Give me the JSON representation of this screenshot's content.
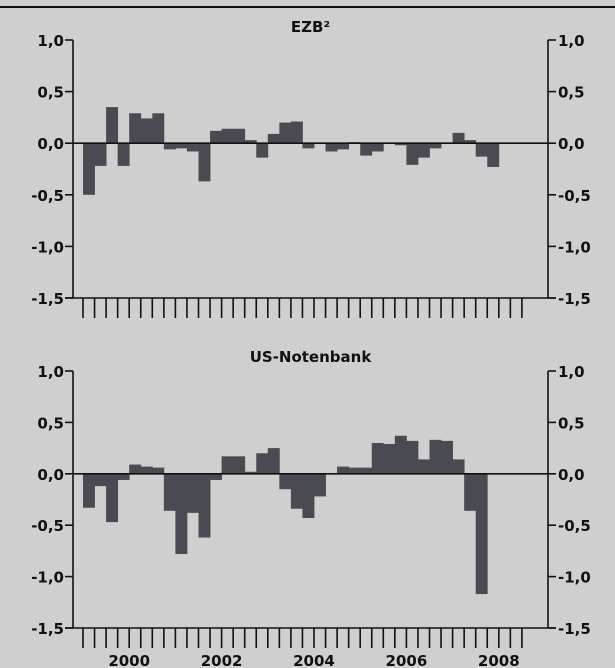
{
  "chart_data": [
    {
      "type": "bar",
      "title": "EZB²",
      "ylim": [
        -1.5,
        1.0
      ],
      "yticks": [
        -1.5,
        -1.0,
        -0.5,
        0.0,
        0.5,
        1.0
      ],
      "ytick_labels": [
        "-1,5",
        "-1,0",
        "-0,5",
        "0,0",
        "0,5",
        "1,0"
      ],
      "x_quarter_start": "1999-Q1",
      "xlim_quarters": [
        0,
        38
      ],
      "grid": false,
      "legend": "none",
      "values": [
        -0.5,
        -0.22,
        0.35,
        -0.22,
        0.29,
        0.24,
        0.29,
        -0.06,
        -0.05,
        -0.08,
        -0.37,
        0.12,
        0.14,
        0.14,
        0.03,
        -0.14,
        0.09,
        0.2,
        0.21,
        -0.05,
        0.0,
        -0.08,
        -0.06,
        0.01,
        -0.12,
        -0.08,
        0.0,
        -0.02,
        -0.21,
        -0.14,
        -0.05,
        0.0,
        0.1,
        0.03,
        -0.13,
        -0.23
      ]
    },
    {
      "type": "bar",
      "title": "US-Notenbank",
      "ylim": [
        -1.5,
        1.0
      ],
      "yticks": [
        -1.5,
        -1.0,
        -0.5,
        0.0,
        0.5,
        1.0
      ],
      "ytick_labels": [
        "-1,5",
        "-1,0",
        "-0,5",
        "0,0",
        "0,5",
        "1,0"
      ],
      "x_quarter_start": "1999-Q1",
      "xlim_quarters": [
        0,
        38
      ],
      "xtick_labels": [
        "2000",
        "2002",
        "2004",
        "2006",
        "2008"
      ],
      "xtick_label_quarters": [
        6,
        14,
        22,
        30,
        38
      ],
      "grid": false,
      "legend": "none",
      "values": [
        -0.33,
        -0.12,
        -0.47,
        -0.06,
        0.09,
        0.07,
        0.06,
        -0.36,
        -0.78,
        -0.38,
        -0.62,
        -0.06,
        0.17,
        0.17,
        0.02,
        0.2,
        0.25,
        -0.15,
        -0.34,
        -0.43,
        -0.22,
        0.0,
        0.07,
        0.06,
        0.06,
        0.3,
        0.29,
        0.37,
        0.32,
        0.14,
        0.33,
        0.32,
        0.14,
        -0.36,
        -1.17
      ]
    }
  ],
  "colors": {
    "background": "#cfcfd0",
    "bar": "#4a4b52",
    "axis": "#111111",
    "zero_line": "#111111"
  }
}
